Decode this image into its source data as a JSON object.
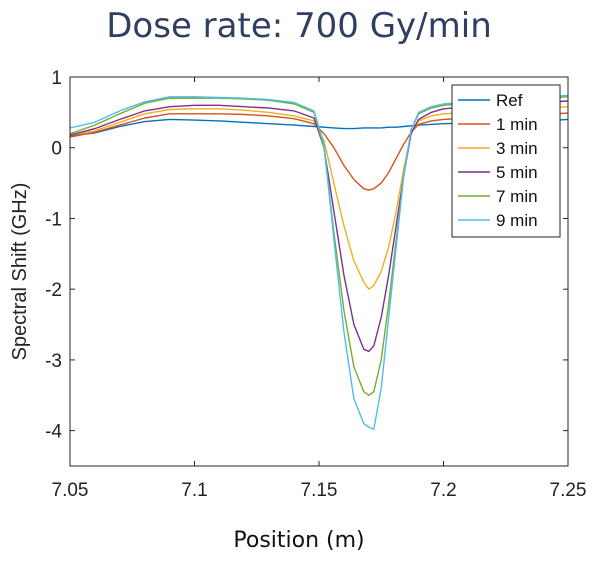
{
  "chart_data": {
    "type": "line",
    "title": "Dose rate: 700 Gy/min",
    "xlabel": "Position (m)",
    "ylabel": "Spectral Shift (GHz)",
    "xlim": [
      7.05,
      7.25
    ],
    "ylim": [
      -4.5,
      1
    ],
    "xticks": [
      7.05,
      7.1,
      7.15,
      7.2,
      7.25
    ],
    "xtick_labels": [
      "7.05",
      "7.1",
      "7.15",
      "7.2",
      "7.25"
    ],
    "yticks": [
      1,
      0,
      -1,
      -2,
      -3,
      -4
    ],
    "ytick_labels": [
      "1",
      "0",
      "-1",
      "-2",
      "-3",
      "-4"
    ],
    "grid": false,
    "legend_position": "top-right",
    "x": [
      7.05,
      7.06,
      7.07,
      7.08,
      7.09,
      7.1,
      7.11,
      7.12,
      7.13,
      7.14,
      7.148,
      7.152,
      7.156,
      7.16,
      7.164,
      7.168,
      7.17,
      7.172,
      7.175,
      7.178,
      7.181,
      7.184,
      7.187,
      7.19,
      7.195,
      7.2,
      7.21,
      7.22,
      7.23,
      7.24,
      7.25
    ],
    "series": [
      {
        "name": "Ref",
        "color": "#0072BD",
        "values": [
          0.17,
          0.21,
          0.3,
          0.37,
          0.4,
          0.39,
          0.38,
          0.36,
          0.34,
          0.32,
          0.3,
          0.29,
          0.28,
          0.27,
          0.27,
          0.28,
          0.28,
          0.28,
          0.28,
          0.29,
          0.29,
          0.3,
          0.31,
          0.32,
          0.33,
          0.34,
          0.35,
          0.36,
          0.37,
          0.38,
          0.4
        ]
      },
      {
        "name": "1 min",
        "color": "#D95319",
        "values": [
          0.15,
          0.22,
          0.32,
          0.42,
          0.48,
          0.48,
          0.48,
          0.47,
          0.45,
          0.41,
          0.34,
          0.2,
          0.0,
          -0.25,
          -0.45,
          -0.58,
          -0.6,
          -0.58,
          -0.5,
          -0.35,
          -0.15,
          0.05,
          0.22,
          0.33,
          0.38,
          0.4,
          0.42,
          0.44,
          0.46,
          0.47,
          0.49
        ]
      },
      {
        "name": "3 min",
        "color": "#EDB120",
        "values": [
          0.18,
          0.24,
          0.36,
          0.48,
          0.54,
          0.55,
          0.55,
          0.53,
          0.5,
          0.45,
          0.38,
          0.1,
          -0.5,
          -1.1,
          -1.6,
          -1.9,
          -2.0,
          -1.95,
          -1.75,
          -1.4,
          -0.9,
          -0.3,
          0.2,
          0.38,
          0.45,
          0.48,
          0.5,
          0.52,
          0.54,
          0.55,
          0.58
        ]
      },
      {
        "name": "5 min",
        "color": "#7E2F8E",
        "values": [
          0.18,
          0.27,
          0.4,
          0.52,
          0.58,
          0.6,
          0.6,
          0.58,
          0.56,
          0.52,
          0.42,
          0.0,
          -0.9,
          -1.8,
          -2.5,
          -2.85,
          -2.88,
          -2.8,
          -2.4,
          -1.8,
          -1.1,
          -0.4,
          0.2,
          0.4,
          0.5,
          0.55,
          0.58,
          0.6,
          0.62,
          0.64,
          0.66
        ]
      },
      {
        "name": "7 min",
        "color": "#77AC30",
        "values": [
          0.2,
          0.32,
          0.48,
          0.63,
          0.7,
          0.7,
          0.7,
          0.69,
          0.67,
          0.62,
          0.5,
          0.0,
          -1.2,
          -2.3,
          -3.1,
          -3.45,
          -3.5,
          -3.45,
          -3.0,
          -2.2,
          -1.3,
          -0.4,
          0.25,
          0.48,
          0.56,
          0.6,
          0.63,
          0.66,
          0.68,
          0.7,
          0.72
        ]
      },
      {
        "name": "9 min",
        "color": "#4DBEEE",
        "values": [
          0.28,
          0.36,
          0.52,
          0.65,
          0.72,
          0.72,
          0.71,
          0.7,
          0.68,
          0.64,
          0.52,
          0.05,
          -1.3,
          -2.6,
          -3.55,
          -3.9,
          -3.95,
          -3.98,
          -3.4,
          -2.4,
          -1.4,
          -0.4,
          0.25,
          0.5,
          0.58,
          0.62,
          0.65,
          0.68,
          0.7,
          0.72,
          0.74
        ]
      }
    ]
  }
}
